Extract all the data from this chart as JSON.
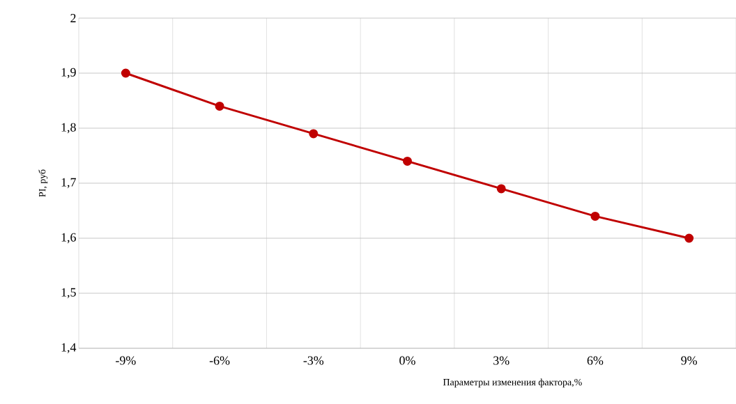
{
  "chart_data": {
    "type": "line",
    "xlabel": "Параметры изменения фактора,%",
    "ylabel": "PI, руб",
    "categories": [
      "-9%",
      "-6%",
      "-3%",
      "0%",
      "3%",
      "6%",
      "9%"
    ],
    "series": [
      {
        "color": "#c00000",
        "values": [
          1.9,
          1.84,
          1.79,
          1.74,
          1.69,
          1.64,
          1.6
        ]
      }
    ],
    "ylim": [
      1.4,
      2
    ],
    "yticks": [
      {
        "value": 1.4,
        "label": "1,4"
      },
      {
        "value": 1.5,
        "label": "1,5"
      },
      {
        "value": 1.6,
        "label": "1,6"
      },
      {
        "value": 1.7,
        "label": "1,7"
      },
      {
        "value": 1.8,
        "label": "1,8"
      },
      {
        "value": 1.9,
        "label": "1,9"
      },
      {
        "value": 2,
        "label": "2"
      }
    ],
    "grid": true,
    "marker": "circle",
    "line_style": "solid"
  }
}
